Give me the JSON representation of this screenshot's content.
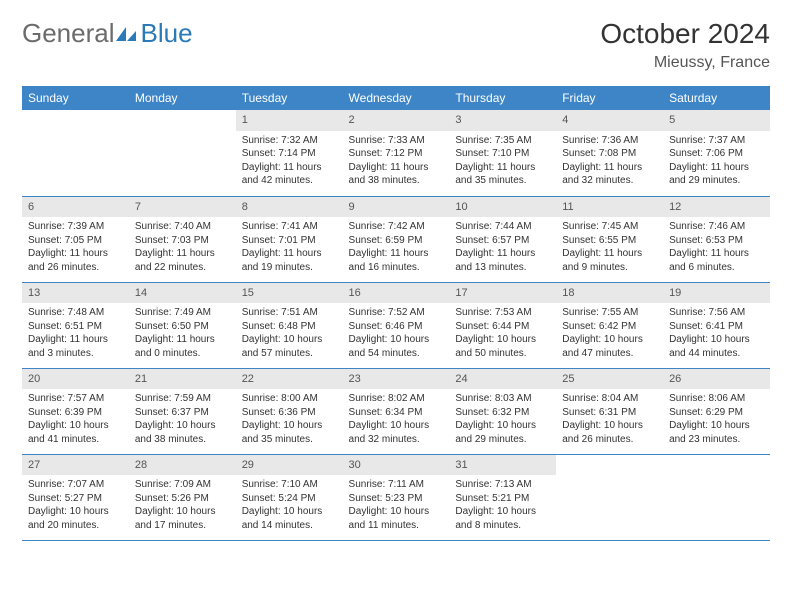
{
  "brand": {
    "part1": "General",
    "part2": "Blue"
  },
  "title": "October 2024",
  "location": "Mieussy, France",
  "colors": {
    "header_bg": "#3d85c6",
    "header_text": "#ffffff",
    "daynum_bg": "#e8e8e8",
    "border": "#3d85c6",
    "brand_gray": "#6b6b6b",
    "brand_blue": "#2a7ab9"
  },
  "weekdays": [
    "Sunday",
    "Monday",
    "Tuesday",
    "Wednesday",
    "Thursday",
    "Friday",
    "Saturday"
  ],
  "weeks": [
    [
      {
        "n": "",
        "sr": "",
        "ss": "",
        "dl": "",
        "empty": true
      },
      {
        "n": "",
        "sr": "",
        "ss": "",
        "dl": "",
        "empty": true
      },
      {
        "n": "1",
        "sr": "Sunrise: 7:32 AM",
        "ss": "Sunset: 7:14 PM",
        "dl": "Daylight: 11 hours and 42 minutes."
      },
      {
        "n": "2",
        "sr": "Sunrise: 7:33 AM",
        "ss": "Sunset: 7:12 PM",
        "dl": "Daylight: 11 hours and 38 minutes."
      },
      {
        "n": "3",
        "sr": "Sunrise: 7:35 AM",
        "ss": "Sunset: 7:10 PM",
        "dl": "Daylight: 11 hours and 35 minutes."
      },
      {
        "n": "4",
        "sr": "Sunrise: 7:36 AM",
        "ss": "Sunset: 7:08 PM",
        "dl": "Daylight: 11 hours and 32 minutes."
      },
      {
        "n": "5",
        "sr": "Sunrise: 7:37 AM",
        "ss": "Sunset: 7:06 PM",
        "dl": "Daylight: 11 hours and 29 minutes."
      }
    ],
    [
      {
        "n": "6",
        "sr": "Sunrise: 7:39 AM",
        "ss": "Sunset: 7:05 PM",
        "dl": "Daylight: 11 hours and 26 minutes."
      },
      {
        "n": "7",
        "sr": "Sunrise: 7:40 AM",
        "ss": "Sunset: 7:03 PM",
        "dl": "Daylight: 11 hours and 22 minutes."
      },
      {
        "n": "8",
        "sr": "Sunrise: 7:41 AM",
        "ss": "Sunset: 7:01 PM",
        "dl": "Daylight: 11 hours and 19 minutes."
      },
      {
        "n": "9",
        "sr": "Sunrise: 7:42 AM",
        "ss": "Sunset: 6:59 PM",
        "dl": "Daylight: 11 hours and 16 minutes."
      },
      {
        "n": "10",
        "sr": "Sunrise: 7:44 AM",
        "ss": "Sunset: 6:57 PM",
        "dl": "Daylight: 11 hours and 13 minutes."
      },
      {
        "n": "11",
        "sr": "Sunrise: 7:45 AM",
        "ss": "Sunset: 6:55 PM",
        "dl": "Daylight: 11 hours and 9 minutes."
      },
      {
        "n": "12",
        "sr": "Sunrise: 7:46 AM",
        "ss": "Sunset: 6:53 PM",
        "dl": "Daylight: 11 hours and 6 minutes."
      }
    ],
    [
      {
        "n": "13",
        "sr": "Sunrise: 7:48 AM",
        "ss": "Sunset: 6:51 PM",
        "dl": "Daylight: 11 hours and 3 minutes."
      },
      {
        "n": "14",
        "sr": "Sunrise: 7:49 AM",
        "ss": "Sunset: 6:50 PM",
        "dl": "Daylight: 11 hours and 0 minutes."
      },
      {
        "n": "15",
        "sr": "Sunrise: 7:51 AM",
        "ss": "Sunset: 6:48 PM",
        "dl": "Daylight: 10 hours and 57 minutes."
      },
      {
        "n": "16",
        "sr": "Sunrise: 7:52 AM",
        "ss": "Sunset: 6:46 PM",
        "dl": "Daylight: 10 hours and 54 minutes."
      },
      {
        "n": "17",
        "sr": "Sunrise: 7:53 AM",
        "ss": "Sunset: 6:44 PM",
        "dl": "Daylight: 10 hours and 50 minutes."
      },
      {
        "n": "18",
        "sr": "Sunrise: 7:55 AM",
        "ss": "Sunset: 6:42 PM",
        "dl": "Daylight: 10 hours and 47 minutes."
      },
      {
        "n": "19",
        "sr": "Sunrise: 7:56 AM",
        "ss": "Sunset: 6:41 PM",
        "dl": "Daylight: 10 hours and 44 minutes."
      }
    ],
    [
      {
        "n": "20",
        "sr": "Sunrise: 7:57 AM",
        "ss": "Sunset: 6:39 PM",
        "dl": "Daylight: 10 hours and 41 minutes."
      },
      {
        "n": "21",
        "sr": "Sunrise: 7:59 AM",
        "ss": "Sunset: 6:37 PM",
        "dl": "Daylight: 10 hours and 38 minutes."
      },
      {
        "n": "22",
        "sr": "Sunrise: 8:00 AM",
        "ss": "Sunset: 6:36 PM",
        "dl": "Daylight: 10 hours and 35 minutes."
      },
      {
        "n": "23",
        "sr": "Sunrise: 8:02 AM",
        "ss": "Sunset: 6:34 PM",
        "dl": "Daylight: 10 hours and 32 minutes."
      },
      {
        "n": "24",
        "sr": "Sunrise: 8:03 AM",
        "ss": "Sunset: 6:32 PM",
        "dl": "Daylight: 10 hours and 29 minutes."
      },
      {
        "n": "25",
        "sr": "Sunrise: 8:04 AM",
        "ss": "Sunset: 6:31 PM",
        "dl": "Daylight: 10 hours and 26 minutes."
      },
      {
        "n": "26",
        "sr": "Sunrise: 8:06 AM",
        "ss": "Sunset: 6:29 PM",
        "dl": "Daylight: 10 hours and 23 minutes."
      }
    ],
    [
      {
        "n": "27",
        "sr": "Sunrise: 7:07 AM",
        "ss": "Sunset: 5:27 PM",
        "dl": "Daylight: 10 hours and 20 minutes."
      },
      {
        "n": "28",
        "sr": "Sunrise: 7:09 AM",
        "ss": "Sunset: 5:26 PM",
        "dl": "Daylight: 10 hours and 17 minutes."
      },
      {
        "n": "29",
        "sr": "Sunrise: 7:10 AM",
        "ss": "Sunset: 5:24 PM",
        "dl": "Daylight: 10 hours and 14 minutes."
      },
      {
        "n": "30",
        "sr": "Sunrise: 7:11 AM",
        "ss": "Sunset: 5:23 PM",
        "dl": "Daylight: 10 hours and 11 minutes."
      },
      {
        "n": "31",
        "sr": "Sunrise: 7:13 AM",
        "ss": "Sunset: 5:21 PM",
        "dl": "Daylight: 10 hours and 8 minutes."
      },
      {
        "n": "",
        "sr": "",
        "ss": "",
        "dl": "",
        "empty": true
      },
      {
        "n": "",
        "sr": "",
        "ss": "",
        "dl": "",
        "empty": true
      }
    ]
  ]
}
